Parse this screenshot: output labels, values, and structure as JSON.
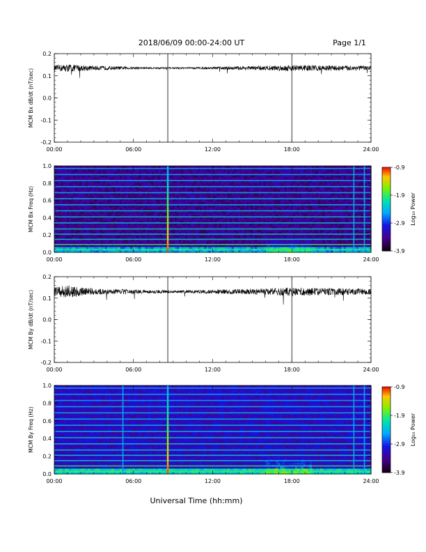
{
  "header": {
    "title": "2018/06/09  00:00-24:00 UT",
    "page": "Page 1/1"
  },
  "xlabel": "Universal Time (hh:mm)",
  "x_ticks": [
    "00:00",
    "06:00",
    "12:00",
    "18:00",
    "24:00"
  ],
  "colorbar": {
    "label": "Log₁₀ Power",
    "ticks": [
      "-0.9",
      "-1.9",
      "-2.9",
      "-3.9"
    ]
  },
  "chart_data": [
    {
      "type": "line",
      "ylabel": "MCM Bx dB/dt (nT/sec)",
      "xlim": [
        0,
        24
      ],
      "ylim": [
        -0.2,
        0.2
      ],
      "y_ticks": [
        "0.2",
        "0.1",
        "0.0",
        "-0.1",
        "-0.2"
      ],
      "baseline": 0.135,
      "noise_amplitude": [
        [
          0,
          0.012
        ],
        [
          1,
          0.018
        ],
        [
          3,
          0.01
        ],
        [
          6,
          0.006
        ],
        [
          9,
          0.003
        ],
        [
          12,
          0.006
        ],
        [
          15,
          0.009
        ],
        [
          18,
          0.014
        ],
        [
          21,
          0.012
        ],
        [
          24,
          0.01
        ]
      ],
      "vertical_markers": [
        8.6,
        18.0
      ]
    },
    {
      "type": "heatmap",
      "ylabel": "MCM Bx Freq (Hz)",
      "xlim": [
        0,
        24
      ],
      "ylim": [
        0.0,
        1.0
      ],
      "y_ticks": [
        "1.0",
        "0.8",
        "0.6",
        "0.4",
        "0.2",
        "0.0"
      ],
      "z_range": [
        -3.9,
        -0.9
      ],
      "harmonic_lines_hz": [
        0.03,
        0.09,
        0.15,
        0.21,
        0.27,
        0.34,
        0.41,
        0.48,
        0.55,
        0.62,
        0.69,
        0.76,
        0.83,
        0.9,
        0.97
      ],
      "vertical_markers": [
        8.6,
        22.7,
        23.5
      ]
    },
    {
      "type": "line",
      "ylabel": "MCM By dB/dt (nT/sec)",
      "xlim": [
        0,
        24
      ],
      "ylim": [
        -0.2,
        0.2
      ],
      "y_ticks": [
        "0.2",
        "0.1",
        "0.0",
        "-0.1",
        "-0.2"
      ],
      "baseline": 0.13,
      "noise_amplitude": [
        [
          0,
          0.02
        ],
        [
          1,
          0.03
        ],
        [
          3,
          0.015
        ],
        [
          6,
          0.01
        ],
        [
          9,
          0.006
        ],
        [
          12,
          0.01
        ],
        [
          15,
          0.013
        ],
        [
          18,
          0.02
        ],
        [
          21,
          0.017
        ],
        [
          24,
          0.014
        ]
      ],
      "vertical_markers": [
        8.6,
        18.0
      ]
    },
    {
      "type": "heatmap",
      "ylabel": "MCM By Freq (Hz)",
      "xlim": [
        0,
        24
      ],
      "ylim": [
        0.0,
        1.0
      ],
      "y_ticks": [
        "1.0",
        "0.8",
        "0.6",
        "0.4",
        "0.2",
        "0.0"
      ],
      "z_range": [
        -3.9,
        -0.9
      ],
      "harmonic_lines_hz": [
        0.03,
        0.09,
        0.15,
        0.21,
        0.27,
        0.34,
        0.41,
        0.48,
        0.55,
        0.62,
        0.69,
        0.76,
        0.83,
        0.9,
        0.97
      ],
      "vertical_markers": [
        5.2,
        8.6,
        22.7,
        23.5
      ]
    }
  ]
}
